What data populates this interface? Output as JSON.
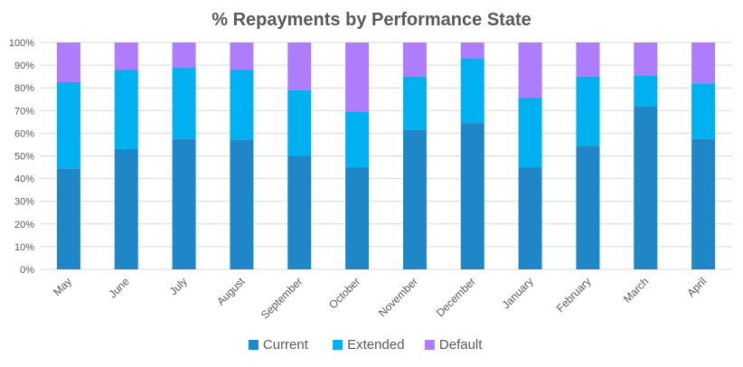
{
  "chart_data": {
    "type": "bar",
    "stacked": true,
    "title": "% Repayments by Performance State",
    "xlabel": "",
    "ylabel": "",
    "ylim": [
      0,
      100
    ],
    "yticks": [
      "0%",
      "10%",
      "20%",
      "30%",
      "40%",
      "50%",
      "60%",
      "70%",
      "80%",
      "90%",
      "100%"
    ],
    "grid": true,
    "legend_position": "bottom",
    "categories": [
      "May",
      "June",
      "July",
      "August",
      "September",
      "October",
      "November",
      "December",
      "January",
      "February",
      "March",
      "April"
    ],
    "series": [
      {
        "name": "Current",
        "color": "#1f86c8",
        "values": [
          44.5,
          53,
          57.5,
          57,
          50,
          45,
          61.5,
          64.5,
          45,
          54.5,
          72,
          57.5
        ]
      },
      {
        "name": "Extended",
        "color": "#00b0f0",
        "values": [
          38,
          35,
          31.5,
          31,
          29,
          24.5,
          23.5,
          28.5,
          30.5,
          30.5,
          13.5,
          24.5
        ]
      },
      {
        "name": "Default",
        "color": "#ad7dfb",
        "values": [
          17.5,
          12,
          11,
          12,
          21,
          30.5,
          15,
          7,
          24.5,
          15,
          14.5,
          18
        ]
      }
    ]
  }
}
